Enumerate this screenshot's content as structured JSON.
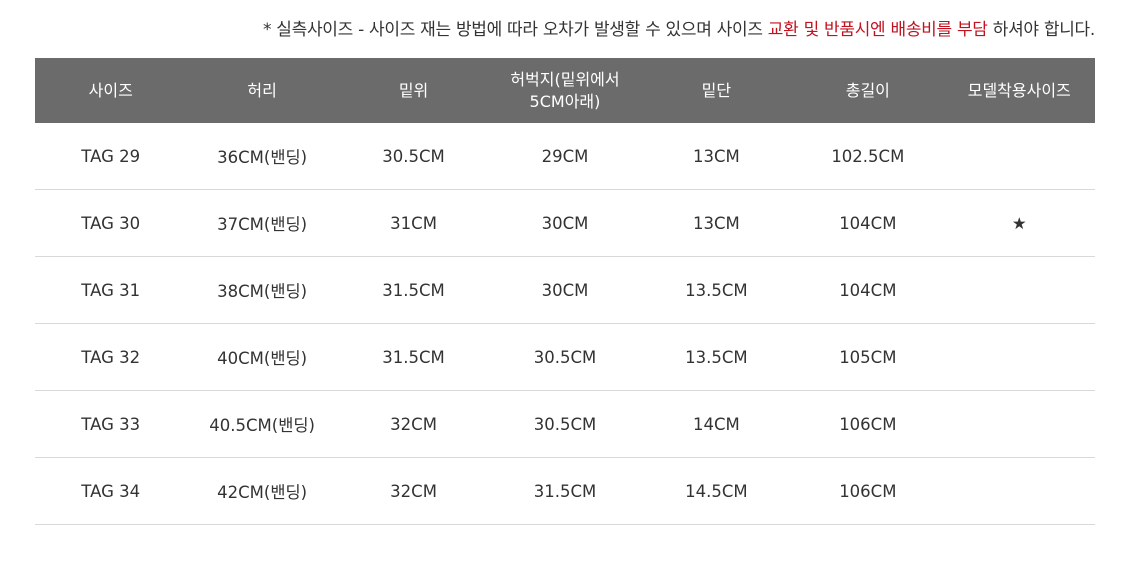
{
  "note": {
    "prefix": "* 실측사이즈 - 사이즈 재는 방법에 따라 오차가 발생할 수 있으며 사이즈 ",
    "highlight": "교환 및 반품시엔 배송비를 부담",
    "suffix": " 하셔야 합니다.",
    "highlight_color": "#c1121f"
  },
  "table": {
    "headers": [
      "사이즈",
      "허리",
      "밑위",
      "허벅지(밑위에서5CM아래)",
      "밑단",
      "총길이",
      "모델착용사이즈"
    ],
    "rows": [
      [
        "TAG 29",
        "36CM(밴딩)",
        "30.5CM",
        "29CM",
        "13CM",
        "102.5CM",
        ""
      ],
      [
        "TAG 30",
        "37CM(밴딩)",
        "31CM",
        "30CM",
        "13CM",
        "104CM",
        "★"
      ],
      [
        "TAG 31",
        "38CM(밴딩)",
        "31.5CM",
        "30CM",
        "13.5CM",
        "104CM",
        ""
      ],
      [
        "TAG 32",
        "40CM(밴딩)",
        "31.5CM",
        "30.5CM",
        "13.5CM",
        "105CM",
        ""
      ],
      [
        "TAG 33",
        "40.5CM(밴딩)",
        "32CM",
        "30.5CM",
        "14CM",
        "106CM",
        ""
      ],
      [
        "TAG 34",
        "42CM(밴딩)",
        "32CM",
        "31.5CM",
        "14.5CM",
        "106CM",
        ""
      ]
    ]
  }
}
